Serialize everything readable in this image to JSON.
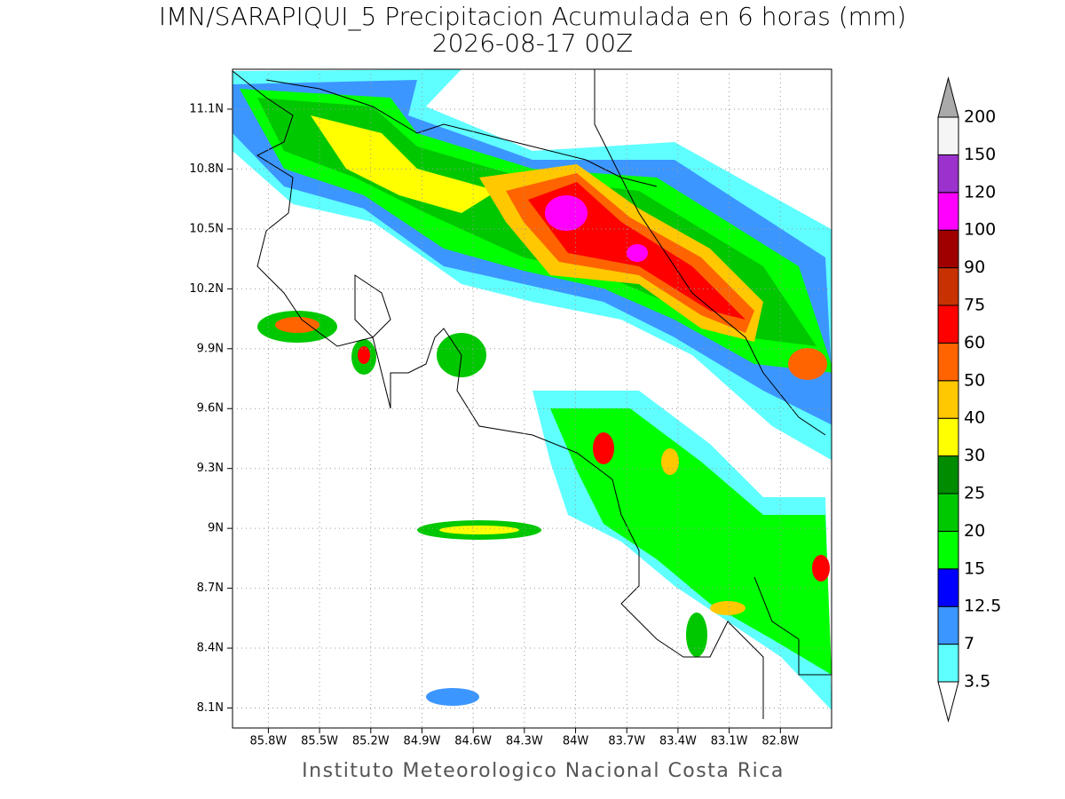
{
  "map": {
    "title": "IMN/SARAPIQUI_5 Precipitacion Acumulada en 6 horas (mm)",
    "subtitle": "2026-08-17 00Z",
    "footer": "Instituto Meteorologico Nacional Costa Rica",
    "xlim": [
      -86.01,
      -82.5
    ],
    "ylim": [
      8.0,
      11.3
    ],
    "xticks": [
      {
        "value": -85.8,
        "label": "85.8W"
      },
      {
        "value": -85.5,
        "label": "85.5W"
      },
      {
        "value": -85.2,
        "label": "85.2W"
      },
      {
        "value": -84.9,
        "label": "84.9W"
      },
      {
        "value": -84.6,
        "label": "84.6W"
      },
      {
        "value": -84.3,
        "label": "84.3W"
      },
      {
        "value": -84.0,
        "label": "84W"
      },
      {
        "value": -83.7,
        "label": "83.7W"
      },
      {
        "value": -83.4,
        "label": "83.4W"
      },
      {
        "value": -83.1,
        "label": "83.1W"
      },
      {
        "value": -82.8,
        "label": "82.8W"
      }
    ],
    "yticks": [
      {
        "value": 8.1,
        "label": "8.1N"
      },
      {
        "value": 8.4,
        "label": "8.4N"
      },
      {
        "value": 8.7,
        "label": "8.7N"
      },
      {
        "value": 9.0,
        "label": "9N"
      },
      {
        "value": 9.3,
        "label": "9.3N"
      },
      {
        "value": 9.6,
        "label": "9.6N"
      },
      {
        "value": 9.9,
        "label": "9.9N"
      },
      {
        "value": 10.2,
        "label": "10.2N"
      },
      {
        "value": 10.5,
        "label": "10.5N"
      },
      {
        "value": 10.8,
        "label": "10.8N"
      },
      {
        "value": 11.1,
        "label": "11.1N"
      }
    ],
    "grid": true,
    "colorbar": {
      "levels": [
        3.5,
        7,
        12.5,
        15,
        20,
        25,
        30,
        40,
        50,
        60,
        75,
        90,
        100,
        120,
        150,
        200
      ],
      "colors": [
        "#60ffff",
        "#3c96ff",
        "#0000ff",
        "#00ff00",
        "#00c800",
        "#008c00",
        "#ffff00",
        "#ffc800",
        "#ff6400",
        "#ff0000",
        "#c83200",
        "#a00000",
        "#ff00ff",
        "#9b32cd",
        "#f5f5f5"
      ],
      "under_color": "#ffffff",
      "over_color": "#aaaaaa"
    }
  }
}
